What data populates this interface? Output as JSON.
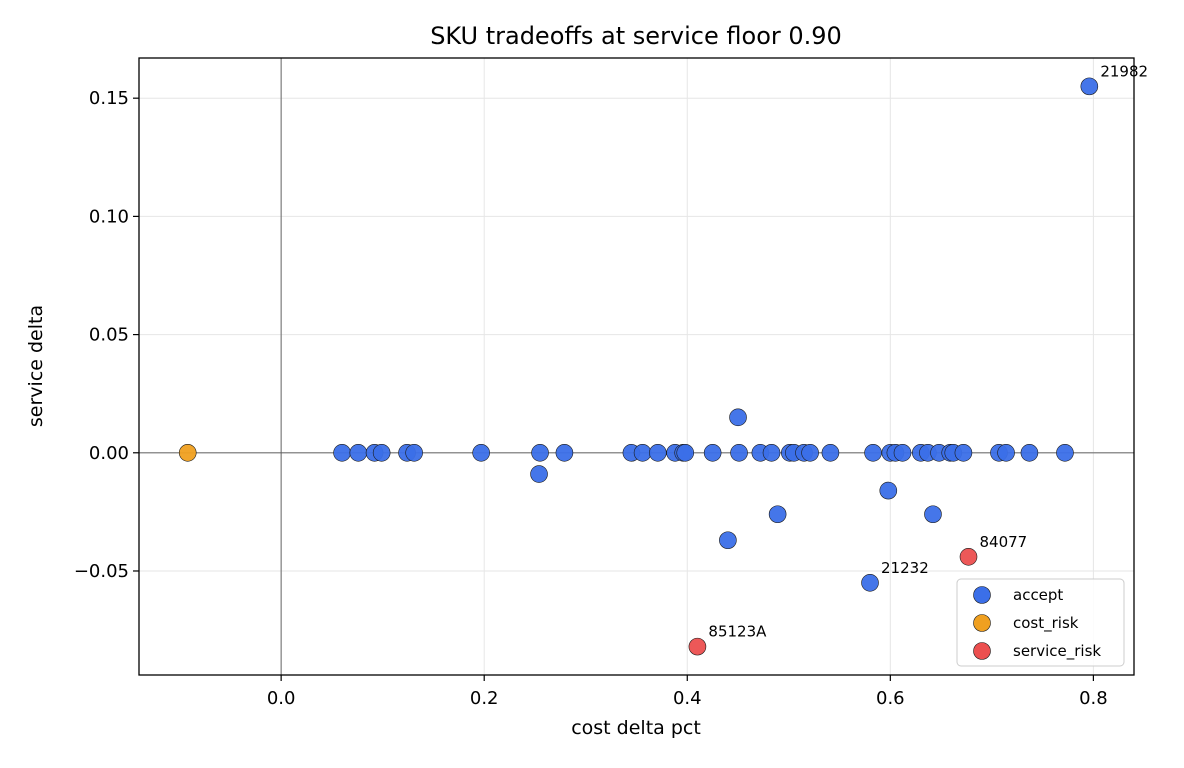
{
  "chart_data": {
    "type": "scatter",
    "title": "SKU tradeoffs at service floor 0.90",
    "xlabel": "cost delta pct",
    "ylabel": "service delta",
    "xlim": [
      -0.14,
      0.84
    ],
    "ylim": [
      -0.094,
      0.167
    ],
    "xticks": [
      0.0,
      0.2,
      0.4,
      0.6,
      0.8
    ],
    "xtick_labels": [
      "0.0",
      "0.2",
      "0.4",
      "0.6",
      "0.8"
    ],
    "yticks": [
      -0.05,
      0.0,
      0.05,
      0.1,
      0.15
    ],
    "ytick_labels": [
      "−0.05",
      "0.00",
      "0.05",
      "0.10",
      "0.15"
    ],
    "grid": true,
    "reference_lines": {
      "x": 0.0,
      "y": 0.0
    },
    "legend_position": "lower-right",
    "colors": {
      "accept": "#3b6fe8",
      "cost_risk": "#f0a020",
      "service_risk": "#ec4f4f"
    },
    "series": [
      {
        "name": "accept",
        "points": [
          [
            0.06,
            0.0
          ],
          [
            0.076,
            0.0
          ],
          [
            0.092,
            0.0
          ],
          [
            0.099,
            0.0
          ],
          [
            0.124,
            0.0
          ],
          [
            0.131,
            0.0
          ],
          [
            0.197,
            0.0
          ],
          [
            0.255,
            0.0
          ],
          [
            0.254,
            -0.009
          ],
          [
            0.279,
            0.0
          ],
          [
            0.345,
            0.0
          ],
          [
            0.356,
            0.0
          ],
          [
            0.371,
            0.0
          ],
          [
            0.388,
            0.0
          ],
          [
            0.396,
            0.0
          ],
          [
            0.398,
            0.0
          ],
          [
            0.425,
            0.0
          ],
          [
            0.45,
            0.015
          ],
          [
            0.451,
            0.0
          ],
          [
            0.44,
            -0.037
          ],
          [
            0.472,
            0.0
          ],
          [
            0.483,
            0.0
          ],
          [
            0.489,
            -0.026
          ],
          [
            0.501,
            0.0
          ],
          [
            0.505,
            0.0
          ],
          [
            0.515,
            0.0
          ],
          [
            0.521,
            0.0
          ],
          [
            0.541,
            0.0
          ],
          [
            0.58,
            -0.055
          ],
          [
            0.583,
            0.0
          ],
          [
            0.598,
            -0.016
          ],
          [
            0.6,
            0.0
          ],
          [
            0.605,
            0.0
          ],
          [
            0.612,
            0.0
          ],
          [
            0.63,
            0.0
          ],
          [
            0.637,
            0.0
          ],
          [
            0.642,
            -0.026
          ],
          [
            0.648,
            0.0
          ],
          [
            0.659,
            0.0
          ],
          [
            0.662,
            0.0
          ],
          [
            0.672,
            0.0
          ],
          [
            0.707,
            0.0
          ],
          [
            0.714,
            0.0
          ],
          [
            0.737,
            0.0
          ],
          [
            0.772,
            0.0
          ],
          [
            0.796,
            0.155
          ]
        ]
      },
      {
        "name": "cost_risk",
        "points": [
          [
            -0.092,
            0.0
          ]
        ]
      },
      {
        "name": "service_risk",
        "points": [
          [
            0.41,
            -0.082
          ],
          [
            0.677,
            -0.044
          ]
        ]
      }
    ],
    "annotations": [
      {
        "text": "21982",
        "x": 0.796,
        "y": 0.155
      },
      {
        "text": "84077",
        "x": 0.677,
        "y": -0.044
      },
      {
        "text": "21232",
        "x": 0.58,
        "y": -0.055
      },
      {
        "text": "85123A",
        "x": 0.41,
        "y": -0.082
      }
    ]
  }
}
